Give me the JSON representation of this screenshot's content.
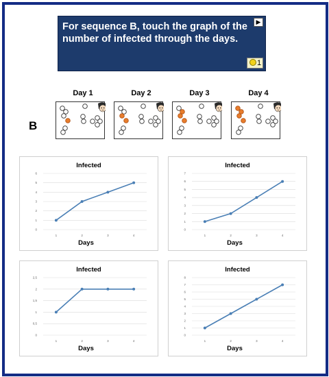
{
  "prompt": {
    "text": "For sequence B, touch the graph of the number of infected through the days.",
    "play_icon": "play-icon",
    "coin_count": "1"
  },
  "sequence": {
    "label": "B",
    "days": [
      "Day 1",
      "Day 2",
      "Day 3",
      "Day 4"
    ],
    "infected_per_day": [
      1,
      2,
      3,
      4
    ]
  },
  "charts": [
    {
      "title": "Infected",
      "xlabel": "Days",
      "y_ticks": [
        "0",
        "1",
        "2",
        "3",
        "4",
        "5",
        "6"
      ],
      "ylim": [
        0,
        6
      ],
      "x_ticks": [
        "1",
        "2",
        "3",
        "4"
      ],
      "values": [
        1,
        3,
        4,
        5
      ]
    },
    {
      "title": "Infected",
      "xlabel": "Days",
      "y_ticks": [
        "0",
        "1",
        "2",
        "3",
        "4",
        "5",
        "6",
        "7"
      ],
      "ylim": [
        0,
        7
      ],
      "x_ticks": [
        "1",
        "2",
        "3",
        "4"
      ],
      "values": [
        1,
        2,
        4,
        6
      ]
    },
    {
      "title": "Infected",
      "xlabel": "Days",
      "y_ticks": [
        "0",
        "0,5",
        "1",
        "1,5",
        "2",
        "2,5"
      ],
      "ylim": [
        0,
        2.5
      ],
      "x_ticks": [
        "1",
        "2",
        "3",
        "4"
      ],
      "values": [
        1,
        2,
        2,
        2
      ]
    },
    {
      "title": "Infected",
      "xlabel": "Days",
      "y_ticks": [
        "0",
        "1",
        "2",
        "3",
        "4",
        "5",
        "6",
        "7",
        "8"
      ],
      "ylim": [
        0,
        8
      ],
      "x_ticks": [
        "1",
        "2",
        "3",
        "4"
      ],
      "values": [
        1,
        3,
        5,
        7
      ]
    }
  ],
  "colors": {
    "frame": "#142c85",
    "prompt_bg": "#1d3b6c",
    "line": "#4a7fb5",
    "infected": "#e87d2c"
  },
  "chart_data": [
    {
      "type": "line",
      "title": "Infected",
      "xlabel": "Days",
      "ylabel": "",
      "x": [
        1,
        2,
        3,
        4
      ],
      "series": [
        {
          "values": [
            1,
            3,
            4,
            5
          ]
        }
      ],
      "ylim": [
        0,
        6
      ],
      "grid": true
    },
    {
      "type": "line",
      "title": "Infected",
      "xlabel": "Days",
      "ylabel": "",
      "x": [
        1,
        2,
        3,
        4
      ],
      "series": [
        {
          "values": [
            1,
            2,
            4,
            6
          ]
        }
      ],
      "ylim": [
        0,
        7
      ],
      "grid": true
    },
    {
      "type": "line",
      "title": "Infected",
      "xlabel": "Days",
      "ylabel": "",
      "x": [
        1,
        2,
        3,
        4
      ],
      "series": [
        {
          "values": [
            1,
            2,
            2,
            2
          ]
        }
      ],
      "ylim": [
        0,
        2.5
      ],
      "grid": true
    },
    {
      "type": "line",
      "title": "Infected",
      "xlabel": "Days",
      "ylabel": "",
      "x": [
        1,
        2,
        3,
        4
      ],
      "series": [
        {
          "values": [
            1,
            3,
            5,
            7
          ]
        }
      ],
      "ylim": [
        0,
        8
      ],
      "grid": true
    }
  ]
}
